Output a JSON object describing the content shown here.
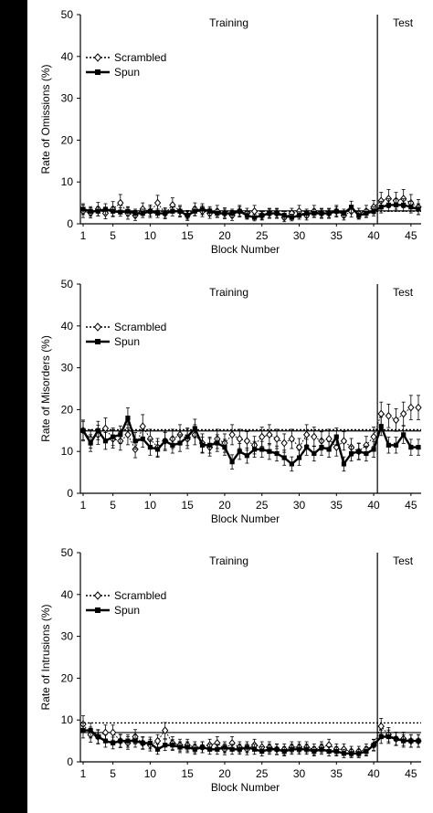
{
  "colors": {
    "background": "#000000",
    "panel": "#ffffff",
    "ink": "#000000"
  },
  "chart_data": [
    {
      "type": "line",
      "ylabel": "Rate of Omissions (%)",
      "xlabel": "Block Number",
      "ylim": [
        0,
        50
      ],
      "yticks": [
        0,
        10,
        20,
        30,
        40,
        50
      ],
      "xticks": [
        1,
        5,
        10,
        15,
        20,
        25,
        30,
        35,
        40,
        45
      ],
      "xlim": [
        1,
        46
      ],
      "phase_labels": {
        "training": "Training",
        "test": "Test"
      },
      "phase_boundary": 40.5,
      "legend": [
        "Scrambled",
        "Spun"
      ],
      "legend_position": "top-left",
      "reference_lines": [
        {
          "series": "Scrambled",
          "style": "dotted",
          "y": 3.0
        },
        {
          "series": "Spun",
          "style": "solid",
          "y": 3.1
        }
      ],
      "series": [
        {
          "name": "Scrambled",
          "marker": "open-diamond",
          "values": [
            3.0,
            2.6,
            3.5,
            2.5,
            3.5,
            5.0,
            2.5,
            2.0,
            3.5,
            3.0,
            5.0,
            2.5,
            4.5,
            3.0,
            2.0,
            3.5,
            3.0,
            2.5,
            3.0,
            2.5,
            2.0,
            3.0,
            2.5,
            3.0,
            2.0,
            2.5,
            2.5,
            1.5,
            2.5,
            3.0,
            2.0,
            3.0,
            2.5,
            2.5,
            3.0,
            2.0,
            3.0,
            2.5,
            3.0,
            4.0,
            5.5,
            6.0,
            5.5,
            6.0,
            5.0,
            4.0
          ],
          "error": [
            1.5,
            1.2,
            1.6,
            1.3,
            1.8,
            2.0,
            1.4,
            1.2,
            1.5,
            1.5,
            1.8,
            1.3,
            1.7,
            1.4,
            1.2,
            1.5,
            1.3,
            1.2,
            1.4,
            1.3,
            1.2,
            1.4,
            1.2,
            1.4,
            1.1,
            1.2,
            1.2,
            1.0,
            1.2,
            1.4,
            1.1,
            1.4,
            1.2,
            1.2,
            1.4,
            1.1,
            1.4,
            1.2,
            1.4,
            1.6,
            2.0,
            2.2,
            2.0,
            2.2,
            2.0,
            1.8
          ]
        },
        {
          "name": "Spun",
          "marker": "filled-square",
          "values": [
            3.5,
            3.0,
            3.0,
            3.5,
            3.0,
            2.8,
            3.0,
            2.5,
            2.5,
            3.0,
            2.5,
            2.5,
            3.0,
            3.0,
            2.0,
            3.0,
            3.5,
            3.0,
            2.5,
            2.5,
            2.5,
            3.0,
            2.0,
            1.5,
            2.0,
            2.5,
            2.5,
            2.0,
            1.5,
            2.0,
            2.5,
            2.5,
            2.5,
            2.5,
            3.0,
            2.5,
            4.0,
            2.0,
            2.5,
            3.0,
            4.0,
            4.5,
            4.5,
            4.5,
            4.0,
            3.5
          ],
          "error": [
            1.3,
            1.1,
            1.1,
            1.3,
            1.1,
            1.0,
            1.1,
            1.0,
            1.0,
            1.1,
            1.0,
            1.0,
            1.1,
            1.1,
            0.9,
            1.1,
            1.3,
            1.1,
            1.0,
            1.0,
            1.0,
            1.1,
            0.9,
            0.8,
            0.9,
            1.0,
            1.0,
            0.9,
            0.8,
            0.9,
            1.0,
            1.0,
            1.0,
            1.0,
            1.1,
            1.0,
            1.4,
            0.9,
            1.0,
            1.1,
            1.4,
            1.5,
            1.5,
            1.5,
            1.4,
            1.3
          ]
        }
      ]
    },
    {
      "type": "line",
      "ylabel": "Rate of Misorders (%)",
      "xlabel": "Block Number",
      "ylim": [
        0,
        50
      ],
      "yticks": [
        0,
        10,
        20,
        30,
        40,
        50
      ],
      "xticks": [
        1,
        5,
        10,
        15,
        20,
        25,
        30,
        35,
        40,
        45
      ],
      "xlim": [
        1,
        46
      ],
      "phase_labels": {
        "training": "Training",
        "test": "Test"
      },
      "phase_boundary": 40.5,
      "legend": [
        "Scrambled",
        "Spun"
      ],
      "legend_position": "top-left",
      "reference_lines": [
        {
          "series": "Scrambled",
          "style": "dotted",
          "y": 15.2
        },
        {
          "series": "Spun",
          "style": "solid",
          "y": 14.9
        }
      ],
      "series": [
        {
          "name": "Scrambled",
          "marker": "open-diamond",
          "values": [
            15.0,
            13.0,
            14.0,
            15.5,
            13.0,
            12.5,
            14.0,
            10.5,
            16.0,
            13.0,
            11.0,
            12.5,
            13.0,
            14.0,
            13.0,
            14.0,
            12.0,
            11.0,
            13.0,
            12.0,
            14.0,
            13.0,
            12.5,
            11.5,
            13.5,
            14.0,
            13.0,
            12.0,
            13.0,
            11.0,
            14.0,
            13.5,
            12.5,
            13.0,
            11.0,
            12.5,
            11.0,
            10.0,
            11.5,
            13.5,
            19.0,
            18.5,
            17.5,
            19.0,
            20.5,
            20.5
          ],
          "error": [
            2.5,
            2.2,
            2.3,
            2.5,
            2.2,
            2.2,
            2.4,
            2.0,
            2.8,
            2.3,
            2.1,
            2.3,
            2.3,
            2.4,
            2.3,
            2.4,
            2.2,
            2.1,
            2.3,
            2.2,
            2.4,
            2.3,
            2.2,
            2.1,
            2.3,
            2.4,
            2.3,
            2.2,
            2.3,
            2.1,
            2.4,
            2.3,
            2.2,
            2.3,
            2.1,
            2.2,
            2.1,
            2.0,
            2.1,
            2.3,
            2.8,
            2.8,
            2.7,
            2.8,
            2.9,
            2.9
          ]
        },
        {
          "name": "Spun",
          "marker": "filled-square",
          "values": [
            15.0,
            12.0,
            15.0,
            12.5,
            13.5,
            14.0,
            18.0,
            12.5,
            13.0,
            11.0,
            10.5,
            12.5,
            11.5,
            12.0,
            13.5,
            15.5,
            11.5,
            11.5,
            12.0,
            11.0,
            7.5,
            10.0,
            9.0,
            10.5,
            10.5,
            10.0,
            9.5,
            8.5,
            7.0,
            8.5,
            11.0,
            9.5,
            11.0,
            10.5,
            13.5,
            7.0,
            9.5,
            10.0,
            9.5,
            10.5,
            16.0,
            11.5,
            11.5,
            14.0,
            11.0,
            11.0
          ],
          "error": [
            2.2,
            2.0,
            2.2,
            2.0,
            2.1,
            2.1,
            2.4,
            2.0,
            2.0,
            1.9,
            1.9,
            2.0,
            1.9,
            2.0,
            2.1,
            2.2,
            1.9,
            1.9,
            2.0,
            1.9,
            1.7,
            1.9,
            1.8,
            1.9,
            1.9,
            1.9,
            1.8,
            1.8,
            1.7,
            1.8,
            1.9,
            1.8,
            1.9,
            1.9,
            2.1,
            1.7,
            1.8,
            1.9,
            1.8,
            1.9,
            2.2,
            1.9,
            1.9,
            2.1,
            1.9,
            1.9
          ]
        }
      ]
    },
    {
      "type": "line",
      "ylabel": "Rate of Intrusions (%)",
      "xlabel": "Block Number",
      "ylim": [
        0,
        50
      ],
      "yticks": [
        0,
        10,
        20,
        30,
        40,
        50
      ],
      "xticks": [
        1,
        5,
        10,
        15,
        20,
        25,
        30,
        35,
        40,
        45
      ],
      "xlim": [
        1,
        46
      ],
      "phase_labels": {
        "training": "Training",
        "test": "Test"
      },
      "phase_boundary": 40.5,
      "legend": [
        "Scrambled",
        "Spun"
      ],
      "legend_position": "top-left",
      "reference_lines": [
        {
          "series": "Scrambled",
          "style": "dotted",
          "y": 9.3
        },
        {
          "series": "Spun",
          "style": "solid",
          "y": 7.0
        }
      ],
      "series": [
        {
          "name": "Scrambled",
          "marker": "open-diamond",
          "values": [
            9.0,
            6.5,
            6.0,
            7.0,
            7.0,
            5.0,
            4.5,
            6.0,
            4.5,
            4.0,
            5.0,
            7.5,
            4.5,
            4.0,
            4.0,
            3.5,
            3.5,
            4.0,
            4.5,
            3.0,
            4.5,
            3.5,
            3.0,
            4.0,
            3.5,
            3.5,
            3.0,
            3.0,
            3.5,
            3.5,
            3.5,
            3.0,
            3.5,
            4.0,
            3.0,
            3.0,
            2.5,
            2.5,
            3.0,
            4.0,
            8.5,
            6.5,
            5.5,
            5.5,
            5.0,
            5.0
          ],
          "error": [
            2.0,
            1.8,
            1.7,
            1.8,
            1.8,
            1.6,
            1.5,
            1.7,
            1.5,
            1.4,
            1.5,
            1.9,
            1.5,
            1.4,
            1.4,
            1.3,
            1.3,
            1.4,
            1.5,
            1.3,
            1.5,
            1.3,
            1.3,
            1.4,
            1.3,
            1.3,
            1.3,
            1.3,
            1.3,
            1.3,
            1.3,
            1.3,
            1.3,
            1.4,
            1.3,
            1.3,
            1.2,
            1.2,
            1.3,
            1.4,
            1.9,
            1.7,
            1.6,
            1.6,
            1.5,
            1.5
          ]
        },
        {
          "name": "Spun",
          "marker": "filled-square",
          "values": [
            7.5,
            7.5,
            6.0,
            5.0,
            4.5,
            5.0,
            5.0,
            5.0,
            4.5,
            4.5,
            3.0,
            4.0,
            4.0,
            3.5,
            3.5,
            3.0,
            3.5,
            3.0,
            3.0,
            3.5,
            3.0,
            3.0,
            3.5,
            3.0,
            2.5,
            3.0,
            3.0,
            2.5,
            3.0,
            3.0,
            3.0,
            2.5,
            3.0,
            2.5,
            2.5,
            2.0,
            2.0,
            2.0,
            2.5,
            4.0,
            6.0,
            6.0,
            5.5,
            5.0,
            5.0,
            5.0
          ],
          "error": [
            1.8,
            1.8,
            1.6,
            1.5,
            1.4,
            1.5,
            1.5,
            1.5,
            1.4,
            1.4,
            1.2,
            1.3,
            1.3,
            1.3,
            1.3,
            1.2,
            1.3,
            1.2,
            1.2,
            1.3,
            1.2,
            1.2,
            1.3,
            1.2,
            1.1,
            1.2,
            1.2,
            1.1,
            1.2,
            1.2,
            1.2,
            1.1,
            1.2,
            1.1,
            1.1,
            1.0,
            1.0,
            1.0,
            1.1,
            1.3,
            1.6,
            1.6,
            1.5,
            1.5,
            1.5,
            1.5
          ]
        }
      ]
    }
  ]
}
